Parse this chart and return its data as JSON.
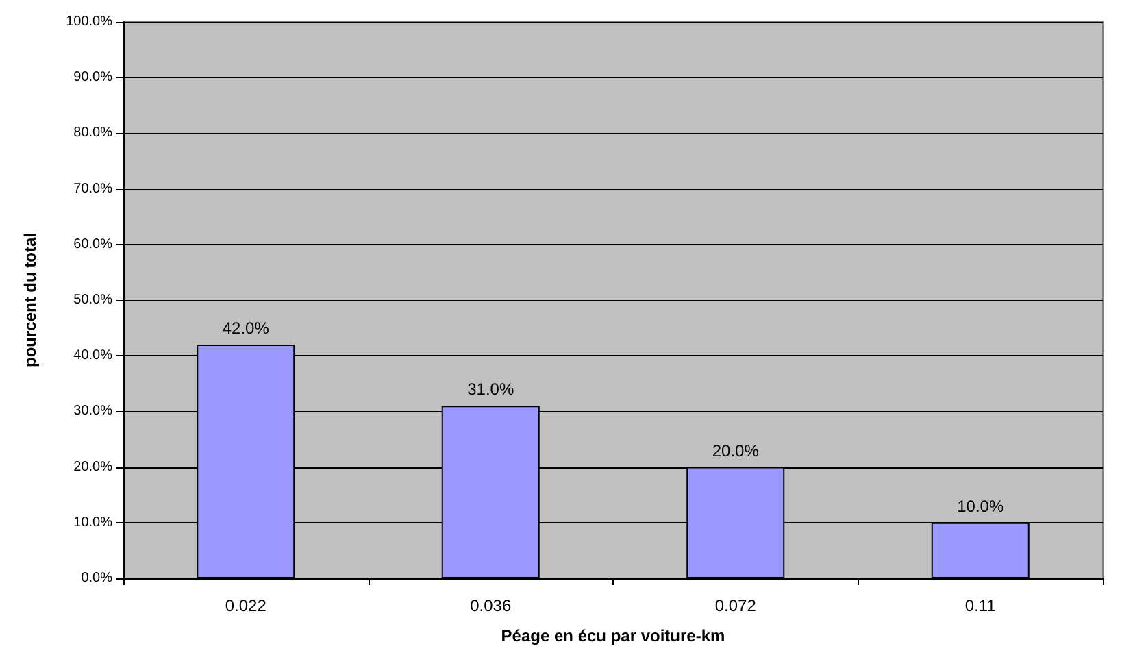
{
  "chart_data": {
    "type": "bar",
    "xlabel": "Péage en écu par voiture-km",
    "ylabel": "pourcent du total",
    "categories": [
      "0.022",
      "0.036",
      "0.072",
      "0.11"
    ],
    "values": [
      42.0,
      31.0,
      20.0,
      10.0
    ],
    "value_labels": [
      "42.0%",
      "31.0%",
      "20.0%",
      "10.0%"
    ],
    "color": "#9999ff",
    "ylim": [
      0,
      100
    ],
    "yticks": [
      {
        "value": 0,
        "label": "0.0%"
      },
      {
        "value": 10,
        "label": "10.0%"
      },
      {
        "value": 20,
        "label": "20.0%"
      },
      {
        "value": 30,
        "label": "30.0%"
      },
      {
        "value": 40,
        "label": "40.0%"
      },
      {
        "value": 50,
        "label": "50.0%"
      },
      {
        "value": 60,
        "label": "60.0%"
      },
      {
        "value": 70,
        "label": "70.0%"
      },
      {
        "value": 80,
        "label": "80.0%"
      },
      {
        "value": 90,
        "label": "90.0%"
      },
      {
        "value": 100,
        "label": "100.0%"
      }
    ],
    "grid": "y"
  }
}
